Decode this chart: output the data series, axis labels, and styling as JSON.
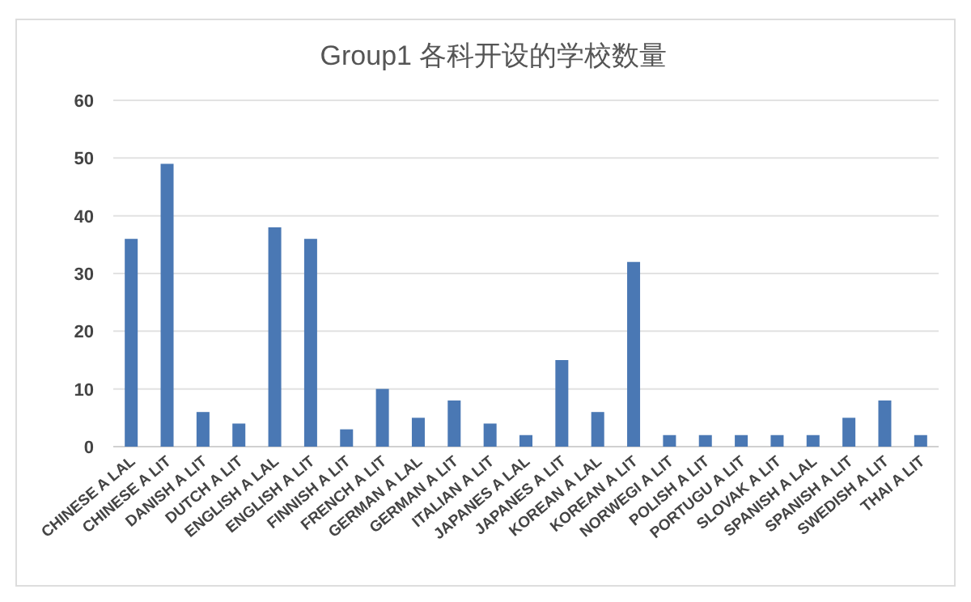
{
  "chart_data": {
    "type": "bar",
    "title": "Group1 各科开设的学校数量",
    "categories": [
      "CHINESE A LAL",
      "CHINESE A LIT",
      "DANISH A LIT",
      "DUTCH A LIT",
      "ENGLISH A LAL",
      "ENGLISH A LIT",
      "FINNISH A LIT",
      "FRENCH A LIT",
      "GERMAN A LAL",
      "GERMAN A LIT",
      "ITALIAN A LIT",
      "JAPANES A LAL",
      "JAPANES A LIT",
      "KOREAN A LAL",
      "KOREAN A LIT",
      "NORWEGI A LIT",
      "POLISH A LIT",
      "PORTUGU A LIT",
      "SLOVAK A LIT",
      "SPANISH A LAL",
      "SPANISH A LIT",
      "SWEDISH A LIT",
      "THAI A LIT"
    ],
    "values": [
      36,
      49,
      6,
      4,
      38,
      36,
      3,
      10,
      5,
      8,
      4,
      2,
      15,
      6,
      32,
      2,
      2,
      2,
      2,
      2,
      5,
      8,
      2
    ],
    "color": "#4a78b4",
    "ylim": [
      0,
      60
    ],
    "yticks": [
      0,
      10,
      20,
      30,
      40,
      50,
      60
    ],
    "grid": "y"
  }
}
